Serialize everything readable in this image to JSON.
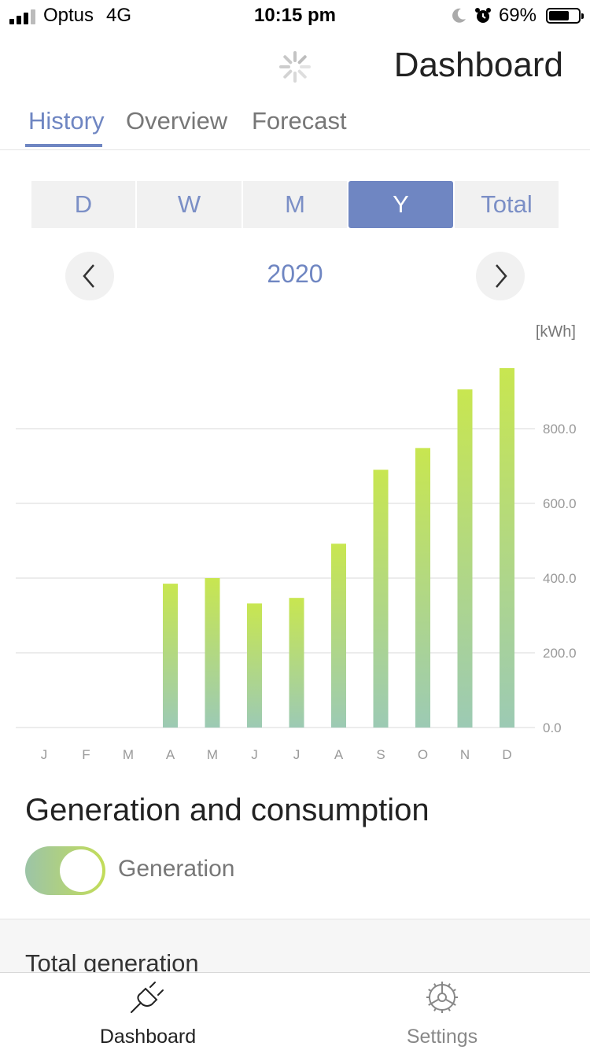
{
  "status_bar": {
    "carrier": "Optus",
    "network": "4G",
    "time": "10:15 pm",
    "battery": "69%",
    "battery_level": 0.69
  },
  "header": {
    "title": "Dashboard"
  },
  "tabs": [
    {
      "label": "History",
      "active": true
    },
    {
      "label": "Overview",
      "active": false
    },
    {
      "label": "Forecast",
      "active": false
    }
  ],
  "period_selector": [
    {
      "label": "D",
      "active": false
    },
    {
      "label": "W",
      "active": false
    },
    {
      "label": "M",
      "active": false
    },
    {
      "label": "Y",
      "active": true
    },
    {
      "label": "Total",
      "active": false
    }
  ],
  "period_nav": {
    "label": "2020"
  },
  "chart_data": {
    "type": "bar",
    "unit_label": "[kWh]",
    "categories": [
      "J",
      "F",
      "M",
      "A",
      "M",
      "J",
      "J",
      "A",
      "S",
      "O",
      "N",
      "D"
    ],
    "values": [
      0,
      0,
      0,
      385,
      400,
      332,
      347,
      492,
      690,
      748,
      905,
      962
    ],
    "y_ticks": [
      "0.0",
      "200.0",
      "400.0",
      "600.0",
      "800.0"
    ],
    "ylim": [
      0,
      1000
    ],
    "grid": true,
    "colors": {
      "bar_top": "#c8e650",
      "bar_bottom": "#9ccab4",
      "grid": "#d9d9d9",
      "tick_text": "#999999"
    }
  },
  "generation_section": {
    "title": "Generation and consumption",
    "toggle_label": "Generation",
    "toggle_on": true
  },
  "totals_panel": {
    "title": "Total generation"
  },
  "bottom_nav": [
    {
      "label": "Dashboard",
      "active": true,
      "icon": "plug-icon"
    },
    {
      "label": "Settings",
      "active": false,
      "icon": "settings-wheel-icon"
    }
  ],
  "colors": {
    "accent": "#6f86c2"
  }
}
